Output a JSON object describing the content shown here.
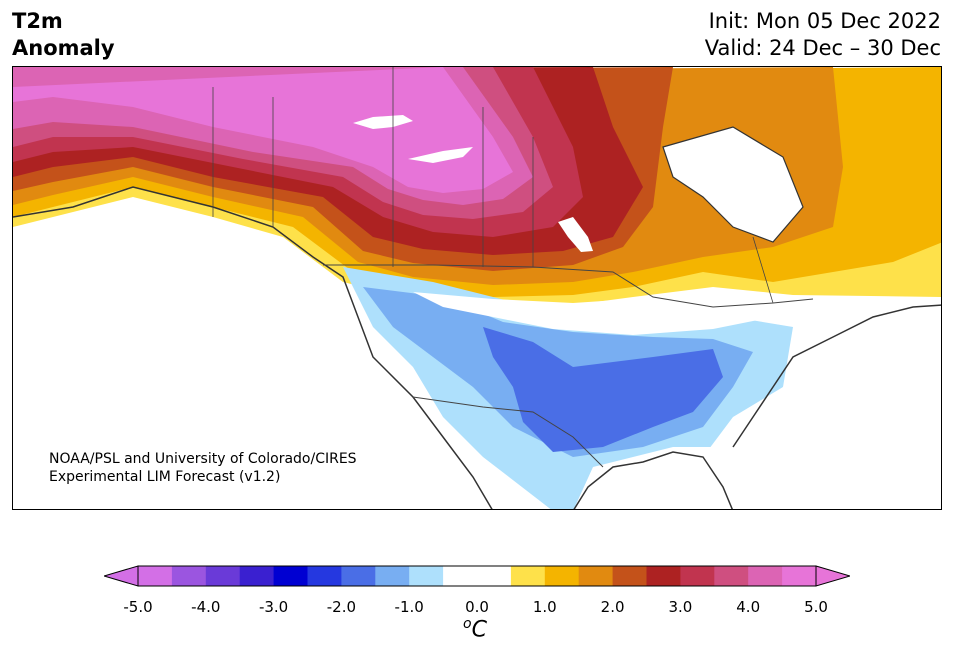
{
  "header": {
    "variable": "T2m",
    "field": "Anomaly",
    "init": "Init: Mon 05 Dec 2022",
    "valid": "Valid: 24 Dec – 30 Dec"
  },
  "credit": {
    "line1": "NOAA/PSL and University of Colorado/CIRES",
    "line2": "Experimental LIM Forecast (v1.2)"
  },
  "colorbar": {
    "ticks": [
      "-5.0",
      "-4.0",
      "-3.0",
      "-2.0",
      "-1.0",
      "0.0",
      "1.0",
      "2.0",
      "3.0",
      "4.0",
      "5.0"
    ],
    "unit_sup": "o",
    "unit": "C",
    "colors": [
      "#d36fe6",
      "#9b55e0",
      "#6a3ad8",
      "#3a20d0",
      "#0000d2",
      "#2538e0",
      "#4a6ee6",
      "#78aef2",
      "#aee0fc",
      "#ffffff",
      "#ffffff",
      "#fee14a",
      "#f4b400",
      "#e18a10",
      "#c4521a",
      "#ad2222",
      "#c1344f",
      "#cf4f80",
      "#dc64b4",
      "#e774d8"
    ],
    "extend_low": "#d36fe6",
    "extend_high": "#e774d8"
  },
  "map": {
    "region": "North America",
    "land_color": "#ffffff",
    "coast_color": "#333333"
  }
}
